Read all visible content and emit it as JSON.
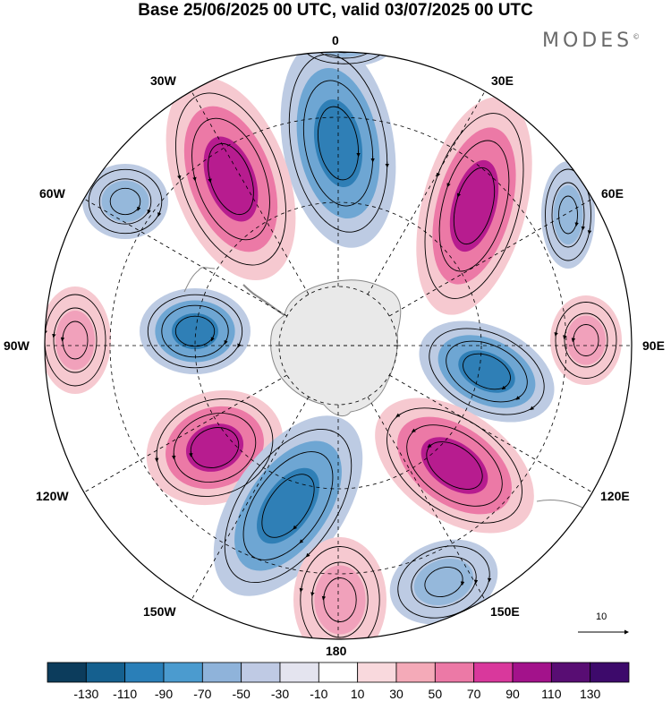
{
  "title": "Base 25/06/2025 00 UTC, valid 03/07/2025 00 UTC",
  "brand": "MODES",
  "brand_mark": "©",
  "longitude_labels": {
    "lon_0": "0",
    "lon_30e": "30E",
    "lon_60e": "60E",
    "lon_90e": "90E",
    "lon_120e": "120E",
    "lon_150e": "150E",
    "lon_180": "180",
    "lon_150w": "150W",
    "lon_120w": "120W",
    "lon_90w": "90W",
    "lon_60w": "60W",
    "lon_30w": "30W"
  },
  "reference_vector": "10",
  "colorbar": {
    "labels": [
      "-130",
      "-110",
      "-90",
      "-70",
      "-50",
      "-30",
      "-10",
      "10",
      "30",
      "50",
      "70",
      "90",
      "110",
      "130"
    ],
    "colors": [
      "#0c3c5c",
      "#15608f",
      "#2a7fb8",
      "#4b9bcf",
      "#8fb3da",
      "#bfcae4",
      "#e4e4ef",
      "#ffffff",
      "#f9d9dd",
      "#f4aab8",
      "#ec79a6",
      "#d9389c",
      "#a3128b",
      "#580d73",
      "#3d0a6b"
    ]
  },
  "anomaly_colors": {
    "negative_strong": "#2f7fb6",
    "negative_mid": "#6ea6d3",
    "negative_weak": "#bdcbe3",
    "positive_weak": "#f6c9d0",
    "positive_mid": "#ec79a6",
    "positive_strong": "#b71c8f",
    "land": "#e9e9e9"
  }
}
